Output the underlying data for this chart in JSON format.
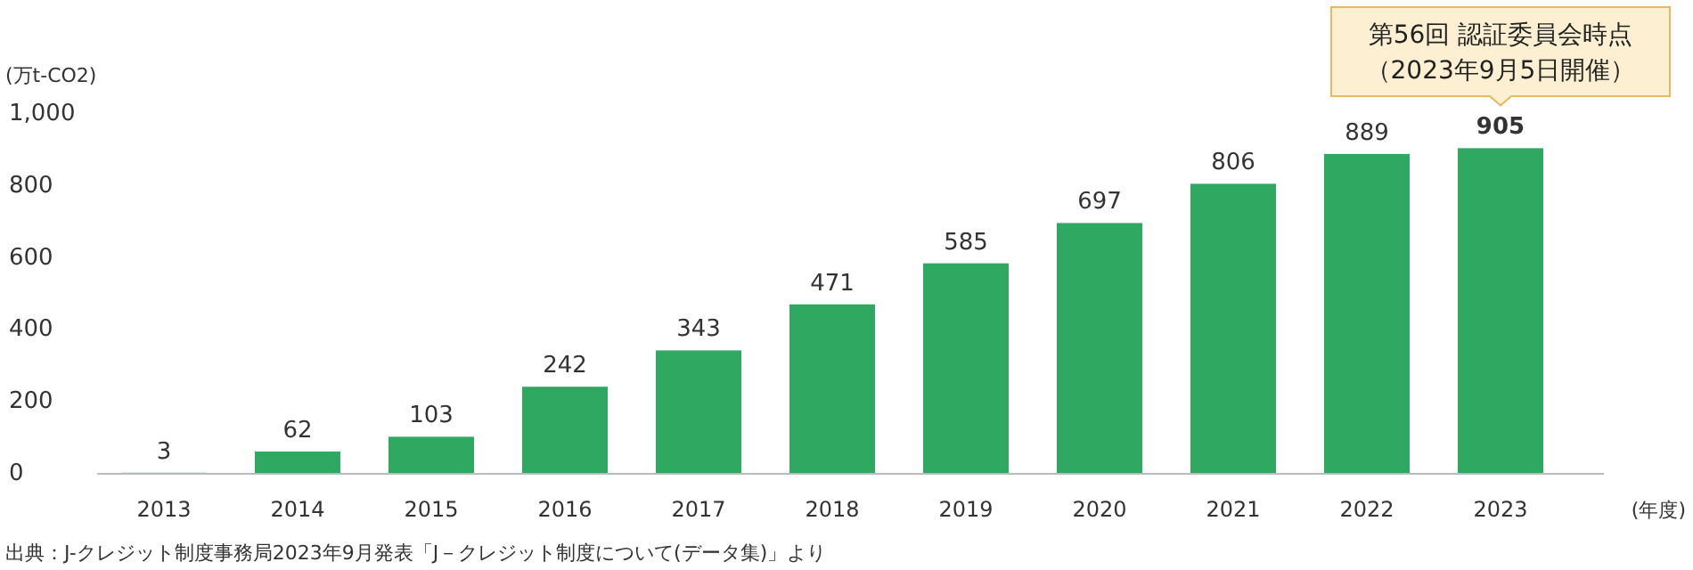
{
  "chart_data": {
    "type": "bar",
    "ylabel": "(万t-CO2)",
    "xlabel": "(年度)",
    "categories": [
      "2013",
      "2014",
      "2015",
      "2016",
      "2017",
      "2018",
      "2019",
      "2020",
      "2021",
      "2022",
      "2023"
    ],
    "series": [
      {
        "color": "#2fa862",
        "values": [
          3,
          62,
          103,
          242,
          343,
          471,
          585,
          697,
          806,
          889,
          905
        ]
      }
    ],
    "ylim": [
      0,
      1000
    ],
    "yticks": [
      0,
      200,
      400,
      600,
      800,
      {
        "value": 1000,
        "label": "1,000"
      }
    ],
    "grid": false,
    "data_labels": true,
    "annotations": [
      {
        "text": "第56回 認証委員会時点（2023年9月5日開催）",
        "x": "2023",
        "y": 905
      },
      "出典：J-クレジット制度事務局2023年9月発表「J－クレジット制度について(データ集)」より"
    ]
  }
}
